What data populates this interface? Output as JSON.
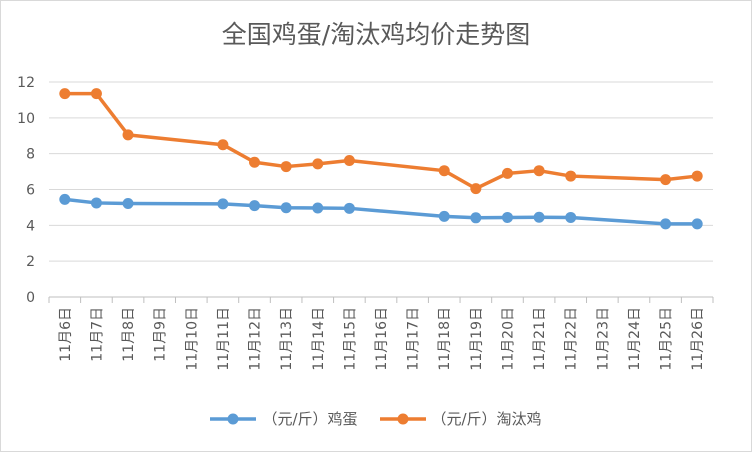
{
  "chart_data": {
    "type": "line",
    "title": "全国鸡蛋/淘汰鸡均价走势图",
    "categories": [
      "11月6日",
      "11月7日",
      "11月8日",
      "11月9日",
      "11月10日",
      "11月11日",
      "11月12日",
      "11月13日",
      "11月14日",
      "11月15日",
      "11月16日",
      "11月17日",
      "11月18日",
      "11月19日",
      "11月20日",
      "11月21日",
      "11月22日",
      "11月23日",
      "11月24日",
      "11月25日",
      "11月26日"
    ],
    "ylim": [
      0,
      12
    ],
    "yticks": [
      0,
      2,
      4,
      6,
      8,
      10,
      12
    ],
    "grid": true,
    "legend_position": "bottom",
    "series": [
      {
        "name": "（元/斤）鸡蛋",
        "color": "#5b9bd5",
        "values": [
          5.45,
          5.25,
          5.22,
          null,
          null,
          5.2,
          5.1,
          4.98,
          4.97,
          4.95,
          null,
          null,
          4.5,
          4.42,
          4.44,
          4.45,
          4.44,
          null,
          null,
          4.08,
          4.08
        ]
      },
      {
        "name": "（元/斤）淘汰鸡",
        "color": "#ed7d31",
        "values": [
          11.35,
          11.35,
          9.05,
          null,
          null,
          8.5,
          7.52,
          7.28,
          7.43,
          7.62,
          null,
          null,
          7.05,
          6.05,
          6.9,
          7.05,
          6.75,
          null,
          null,
          6.55,
          6.75
        ]
      }
    ]
  }
}
